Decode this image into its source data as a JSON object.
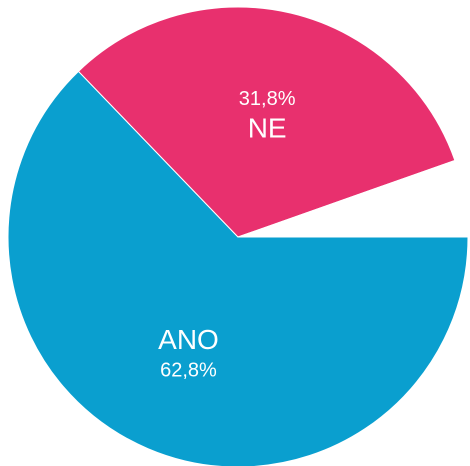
{
  "chart_data": {
    "type": "pie",
    "categories": [
      "ANO",
      "NE",
      null
    ],
    "values": [
      62.8,
      31.8,
      5.4
    ],
    "value_labels": [
      "62,8%",
      "31,8%",
      null
    ],
    "colors": [
      "#0a9fcf",
      "#e8306e",
      "#ffffff"
    ]
  }
}
